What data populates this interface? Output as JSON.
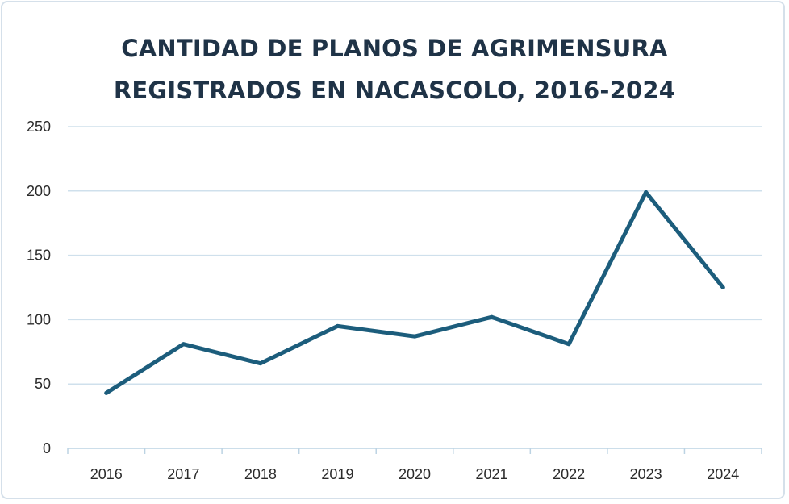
{
  "chart_data": {
    "type": "line",
    "title_lines": [
      "CANTIDAD DE PLANOS DE AGRIMENSURA",
      "REGISTRADOS EN NACASCOLO, 2016-2024"
    ],
    "xlabel": "",
    "ylabel": "",
    "categories": [
      "2016",
      "2017",
      "2018",
      "2019",
      "2020",
      "2021",
      "2022",
      "2023",
      "2024"
    ],
    "series": [
      {
        "values": [
          43,
          81,
          66,
          95,
          87,
          102,
          81,
          199,
          125
        ]
      }
    ],
    "ylim": [
      0,
      250
    ],
    "yticks": [
      0,
      50,
      100,
      150,
      200,
      250
    ],
    "ytick_labels": [
      "0",
      "50",
      "100",
      "150",
      "200",
      "250"
    ],
    "grid": true,
    "legend": "none",
    "colors": {
      "line": "#1c5d7c",
      "grid": "#cfe0ec",
      "axis": "#bcd3e3",
      "title": "#1f3347",
      "border": "#d5e0ea"
    }
  }
}
